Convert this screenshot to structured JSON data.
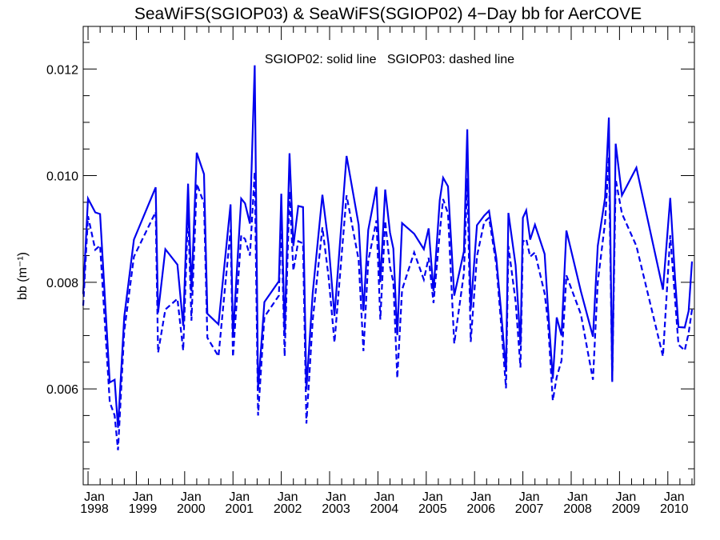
{
  "chart_data": {
    "type": "line",
    "title": "SeaWiFS(SGIOP03) & SeaWiFS(SGIOP02) 4−Day bb for AerCOVE",
    "annotation": "SGIOP02: solid line   SGIOP03: dashed line",
    "ylabel": "bb (m⁻¹)",
    "xlabel": "",
    "xlim": [
      1997.9,
      2010.55
    ],
    "ylim": [
      0.0042,
      0.0128
    ],
    "yticks": [
      0.006,
      0.008,
      0.01,
      0.012
    ],
    "ytick_labels": [
      "0.006",
      "0.008",
      "0.010",
      "0.012"
    ],
    "xticks": [
      {
        "x": 1998,
        "month": "Jan",
        "year": "1998"
      },
      {
        "x": 1999,
        "month": "Jan",
        "year": "1999"
      },
      {
        "x": 2000,
        "month": "Jan",
        "year": "2000"
      },
      {
        "x": 2001,
        "month": "Jan",
        "year": "2001"
      },
      {
        "x": 2002,
        "month": "Jan",
        "year": "2002"
      },
      {
        "x": 2003,
        "month": "Jan",
        "year": "2003"
      },
      {
        "x": 2004,
        "month": "Jan",
        "year": "2004"
      },
      {
        "x": 2005,
        "month": "Jan",
        "year": "2005"
      },
      {
        "x": 2006,
        "month": "Jan",
        "year": "2006"
      },
      {
        "x": 2007,
        "month": "Jan",
        "year": "2007"
      },
      {
        "x": 2008,
        "month": "Jan",
        "year": "2008"
      },
      {
        "x": 2009,
        "month": "Jan",
        "year": "2009"
      },
      {
        "x": 2010,
        "month": "Jan",
        "year": "2010"
      }
    ],
    "line_color": "#0000ee",
    "series": [
      {
        "name": "SGIOP02",
        "style": "solid",
        "points": [
          [
            1997.9,
            0.00778
          ],
          [
            1998.0,
            0.00957
          ],
          [
            1998.15,
            0.00931
          ],
          [
            1998.25,
            0.00928
          ],
          [
            1998.45,
            0.00612
          ],
          [
            1998.55,
            0.00617
          ],
          [
            1998.62,
            0.00527
          ],
          [
            1998.75,
            0.00735
          ],
          [
            1998.95,
            0.0088
          ],
          [
            1999.4,
            0.00978
          ],
          [
            1999.45,
            0.00743
          ],
          [
            1999.6,
            0.00862
          ],
          [
            1999.85,
            0.00833
          ],
          [
            1999.97,
            0.00718
          ],
          [
            2000.07,
            0.00985
          ],
          [
            2000.14,
            0.00783
          ],
          [
            2000.25,
            0.01043
          ],
          [
            2000.4,
            0.01003
          ],
          [
            2000.47,
            0.00741
          ],
          [
            2000.7,
            0.00721
          ],
          [
            2000.95,
            0.00946
          ],
          [
            2001.0,
            0.00698
          ],
          [
            2001.17,
            0.00957
          ],
          [
            2001.25,
            0.00948
          ],
          [
            2001.35,
            0.0091
          ],
          [
            2001.45,
            0.01207
          ],
          [
            2001.52,
            0.00599
          ],
          [
            2001.65,
            0.00763
          ],
          [
            2001.95,
            0.00802
          ],
          [
            2002.0,
            0.00966
          ],
          [
            2002.07,
            0.00703
          ],
          [
            2002.17,
            0.01042
          ],
          [
            2002.25,
            0.00868
          ],
          [
            2002.35,
            0.00943
          ],
          [
            2002.45,
            0.00941
          ],
          [
            2002.52,
            0.00599
          ],
          [
            2002.65,
            0.0078
          ],
          [
            2002.85,
            0.00964
          ],
          [
            2002.98,
            0.0087
          ],
          [
            2003.1,
            0.00737
          ],
          [
            2003.35,
            0.01037
          ],
          [
            2003.6,
            0.00908
          ],
          [
            2003.7,
            0.00746
          ],
          [
            2003.8,
            0.00898
          ],
          [
            2003.97,
            0.00979
          ],
          [
            2004.05,
            0.008
          ],
          [
            2004.15,
            0.00974
          ],
          [
            2004.25,
            0.00893
          ],
          [
            2004.32,
            0.00863
          ],
          [
            2004.4,
            0.00701
          ],
          [
            2004.5,
            0.00911
          ],
          [
            2004.75,
            0.00891
          ],
          [
            2004.95,
            0.00862
          ],
          [
            2005.05,
            0.00901
          ],
          [
            2005.15,
            0.00783
          ],
          [
            2005.28,
            0.00954
          ],
          [
            2005.35,
            0.00996
          ],
          [
            2005.45,
            0.0098
          ],
          [
            2005.58,
            0.00775
          ],
          [
            2005.78,
            0.00858
          ],
          [
            2005.85,
            0.01087
          ],
          [
            2005.92,
            0.00749
          ],
          [
            2006.05,
            0.00907
          ],
          [
            2006.2,
            0.00925
          ],
          [
            2006.3,
            0.00934
          ],
          [
            2006.45,
            0.00845
          ],
          [
            2006.55,
            0.00745
          ],
          [
            2006.65,
            0.00632
          ],
          [
            2006.7,
            0.0093
          ],
          [
            2006.85,
            0.00832
          ],
          [
            2006.95,
            0.00683
          ],
          [
            2007.0,
            0.00921
          ],
          [
            2007.07,
            0.00935
          ],
          [
            2007.15,
            0.0088
          ],
          [
            2007.25,
            0.00908
          ],
          [
            2007.45,
            0.00853
          ],
          [
            2007.52,
            0.00751
          ],
          [
            2007.62,
            0.00619
          ],
          [
            2007.7,
            0.00734
          ],
          [
            2007.8,
            0.007
          ],
          [
            2007.9,
            0.00897
          ],
          [
            2008.2,
            0.00783
          ],
          [
            2008.45,
            0.00698
          ],
          [
            2008.55,
            0.00868
          ],
          [
            2008.7,
            0.00958
          ],
          [
            2008.78,
            0.01109
          ],
          [
            2008.85,
            0.00613
          ],
          [
            2008.92,
            0.0106
          ],
          [
            2009.05,
            0.00963
          ],
          [
            2009.35,
            0.01015
          ],
          [
            2009.9,
            0.00786
          ],
          [
            2010.05,
            0.00958
          ],
          [
            2010.15,
            0.00808
          ],
          [
            2010.22,
            0.00716
          ],
          [
            2010.35,
            0.00715
          ],
          [
            2010.43,
            0.00746
          ],
          [
            2010.5,
            0.00839
          ]
        ]
      },
      {
        "name": "SGIOP03",
        "style": "dashed",
        "points": [
          [
            1997.9,
            0.00756
          ],
          [
            1998.0,
            0.00924
          ],
          [
            1998.15,
            0.00861
          ],
          [
            1998.25,
            0.00869
          ],
          [
            1998.45,
            0.00575
          ],
          [
            1998.55,
            0.0055
          ],
          [
            1998.62,
            0.00485
          ],
          [
            1998.75,
            0.00708
          ],
          [
            1998.95,
            0.00848
          ],
          [
            1999.4,
            0.00932
          ],
          [
            1999.45,
            0.00668
          ],
          [
            1999.6,
            0.00749
          ],
          [
            1999.85,
            0.00769
          ],
          [
            1999.97,
            0.00672
          ],
          [
            2000.07,
            0.00935
          ],
          [
            2000.14,
            0.00728
          ],
          [
            2000.25,
            0.00985
          ],
          [
            2000.4,
            0.00948
          ],
          [
            2000.47,
            0.00696
          ],
          [
            2000.7,
            0.00661
          ],
          [
            2000.95,
            0.00899
          ],
          [
            2001.0,
            0.0066
          ],
          [
            2001.17,
            0.00888
          ],
          [
            2001.25,
            0.00881
          ],
          [
            2001.35,
            0.0085
          ],
          [
            2001.45,
            0.01007
          ],
          [
            2001.52,
            0.0055
          ],
          [
            2001.65,
            0.00735
          ],
          [
            2001.95,
            0.00775
          ],
          [
            2002.0,
            0.00919
          ],
          [
            2002.07,
            0.00661
          ],
          [
            2002.17,
            0.00971
          ],
          [
            2002.25,
            0.00822
          ],
          [
            2002.35,
            0.00877
          ],
          [
            2002.45,
            0.00873
          ],
          [
            2002.52,
            0.00535
          ],
          [
            2002.65,
            0.00729
          ],
          [
            2002.85,
            0.00903
          ],
          [
            2002.98,
            0.00809
          ],
          [
            2003.1,
            0.00687
          ],
          [
            2003.35,
            0.00963
          ],
          [
            2003.6,
            0.00842
          ],
          [
            2003.7,
            0.00671
          ],
          [
            2003.8,
            0.0084
          ],
          [
            2003.97,
            0.00916
          ],
          [
            2004.05,
            0.0073
          ],
          [
            2004.15,
            0.00915
          ],
          [
            2004.25,
            0.00829
          ],
          [
            2004.32,
            0.008
          ],
          [
            2004.4,
            0.0062
          ],
          [
            2004.5,
            0.00786
          ],
          [
            2004.75,
            0.00856
          ],
          [
            2004.95,
            0.00805
          ],
          [
            2005.05,
            0.00846
          ],
          [
            2005.15,
            0.00761
          ],
          [
            2005.28,
            0.00893
          ],
          [
            2005.35,
            0.00956
          ],
          [
            2005.45,
            0.00929
          ],
          [
            2005.58,
            0.00685
          ],
          [
            2005.78,
            0.00817
          ],
          [
            2005.85,
            0.00995
          ],
          [
            2005.92,
            0.00688
          ],
          [
            2006.05,
            0.00849
          ],
          [
            2006.2,
            0.00913
          ],
          [
            2006.3,
            0.00921
          ],
          [
            2006.45,
            0.00833
          ],
          [
            2006.55,
            0.00722
          ],
          [
            2006.65,
            0.00601
          ],
          [
            2006.7,
            0.00868
          ],
          [
            2006.85,
            0.00764
          ],
          [
            2006.95,
            0.0064
          ],
          [
            2007.0,
            0.00876
          ],
          [
            2007.07,
            0.00881
          ],
          [
            2007.15,
            0.00848
          ],
          [
            2007.25,
            0.00856
          ],
          [
            2007.45,
            0.00779
          ],
          [
            2007.52,
            0.00725
          ],
          [
            2007.62,
            0.00578
          ],
          [
            2007.7,
            0.00622
          ],
          [
            2007.8,
            0.00653
          ],
          [
            2007.9,
            0.00813
          ],
          [
            2008.2,
            0.0074
          ],
          [
            2008.45,
            0.00617
          ],
          [
            2008.55,
            0.008
          ],
          [
            2008.7,
            0.00912
          ],
          [
            2008.78,
            0.01034
          ],
          [
            2008.85,
            0.00616
          ],
          [
            2008.92,
            0.00993
          ],
          [
            2009.05,
            0.00929
          ],
          [
            2009.35,
            0.00868
          ],
          [
            2009.9,
            0.00661
          ],
          [
            2010.05,
            0.00888
          ],
          [
            2010.15,
            0.00768
          ],
          [
            2010.22,
            0.00683
          ],
          [
            2010.35,
            0.00672
          ],
          [
            2010.43,
            0.00705
          ],
          [
            2010.5,
            0.00749
          ]
        ]
      }
    ]
  }
}
